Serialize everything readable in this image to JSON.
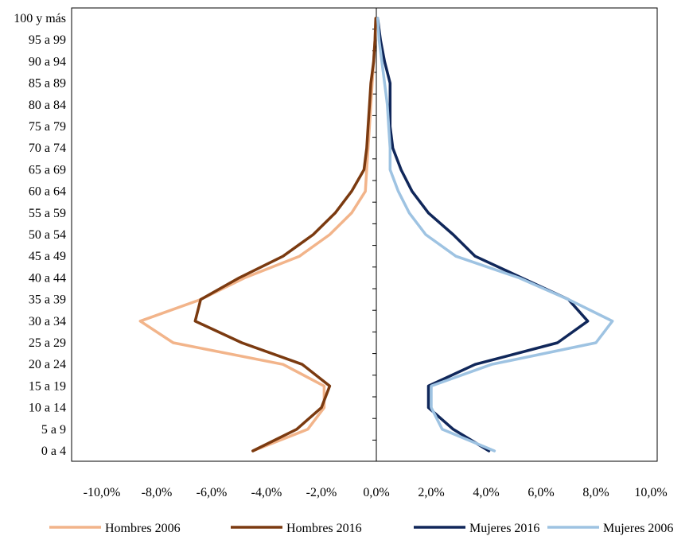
{
  "chart_data": {
    "type": "line",
    "orientation": "horizontal-population-pyramid",
    "title": "",
    "xlabel": "",
    "ylabel": "",
    "categories": [
      "0 a 4",
      "5 a 9",
      "10 a 14",
      "15 a 19",
      "20 a 24",
      "25 a 29",
      "30 a 34",
      "35 a 39",
      "40 a 44",
      "45 a 49",
      "50 a 54",
      "55 a 59",
      "60 a 64",
      "65 a 69",
      "70 a 74",
      "75 a 79",
      "80 a 84",
      "85 a 89",
      "90 a 94",
      "95 a 99",
      "100 y más"
    ],
    "x_ticks": [
      "-10,0%",
      "-8,0%",
      "-6,0%",
      "-4,0%",
      "-2,0%",
      "0,0%",
      "2,0%",
      "4,0%",
      "6,0%",
      "8,0%",
      "10,0%"
    ],
    "xlim": [
      -10,
      10
    ],
    "x_unit": "%",
    "grid": false,
    "legend_position": "bottom",
    "series": [
      {
        "name": "Hombres 2006",
        "color": "#f2b48a",
        "stroke_width": 3.5,
        "values": [
          -4.5,
          -2.5,
          -1.9,
          -1.9,
          -3.4,
          -7.4,
          -8.6,
          -6.4,
          -4.8,
          -2.8,
          -1.7,
          -0.9,
          -0.4,
          -0.35,
          -0.3,
          -0.25,
          -0.2,
          -0.15,
          -0.1,
          -0.05,
          -0.02
        ]
      },
      {
        "name": "Hombres 2016",
        "color": "#7b3a10",
        "stroke_width": 3.5,
        "values": [
          -4.5,
          -2.9,
          -2.0,
          -1.7,
          -2.7,
          -4.9,
          -6.6,
          -6.4,
          -5.0,
          -3.4,
          -2.3,
          -1.5,
          -0.9,
          -0.45,
          -0.35,
          -0.3,
          -0.25,
          -0.2,
          -0.1,
          -0.05,
          -0.02
        ]
      },
      {
        "name": "Mujeres 2016",
        "color": "#10275a",
        "stroke_width": 3.5,
        "values": [
          4.1,
          2.8,
          1.9,
          1.9,
          3.6,
          6.6,
          7.7,
          7.0,
          5.3,
          3.6,
          2.8,
          1.9,
          1.3,
          0.9,
          0.6,
          0.5,
          0.5,
          0.5,
          0.3,
          0.15,
          0.05
        ]
      },
      {
        "name": "Mujeres 2006",
        "color": "#9ec3e2",
        "stroke_width": 3.5,
        "values": [
          4.3,
          2.4,
          2.0,
          2.0,
          4.2,
          8.0,
          8.6,
          7.0,
          5.2,
          2.9,
          1.8,
          1.2,
          0.8,
          0.5,
          0.5,
          0.45,
          0.4,
          0.3,
          0.2,
          0.1,
          0.05
        ]
      }
    ]
  }
}
